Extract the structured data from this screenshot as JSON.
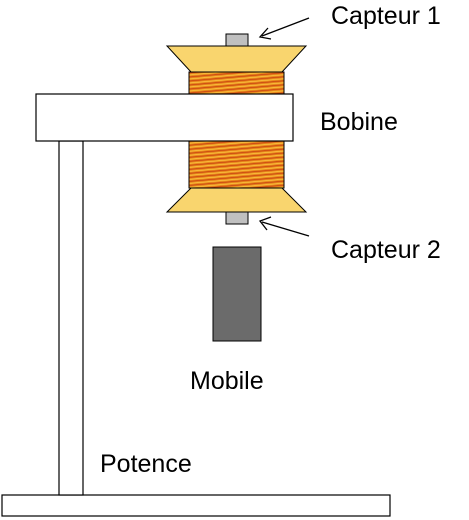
{
  "labels": {
    "sensor_1": "Capteur 1",
    "coil": "Bobine",
    "sensor_2": "Capteur 2",
    "mobile": "Mobile",
    "stand": "Potence"
  },
  "colors": {
    "spool_body": "#f9d56e",
    "winding": "#e98a1a",
    "winding_line": "#c83b12",
    "sensor": "#c0c0c0",
    "mobile": "#6b6b6b",
    "outline": "#000000",
    "stand_fill": "#ffffff"
  }
}
